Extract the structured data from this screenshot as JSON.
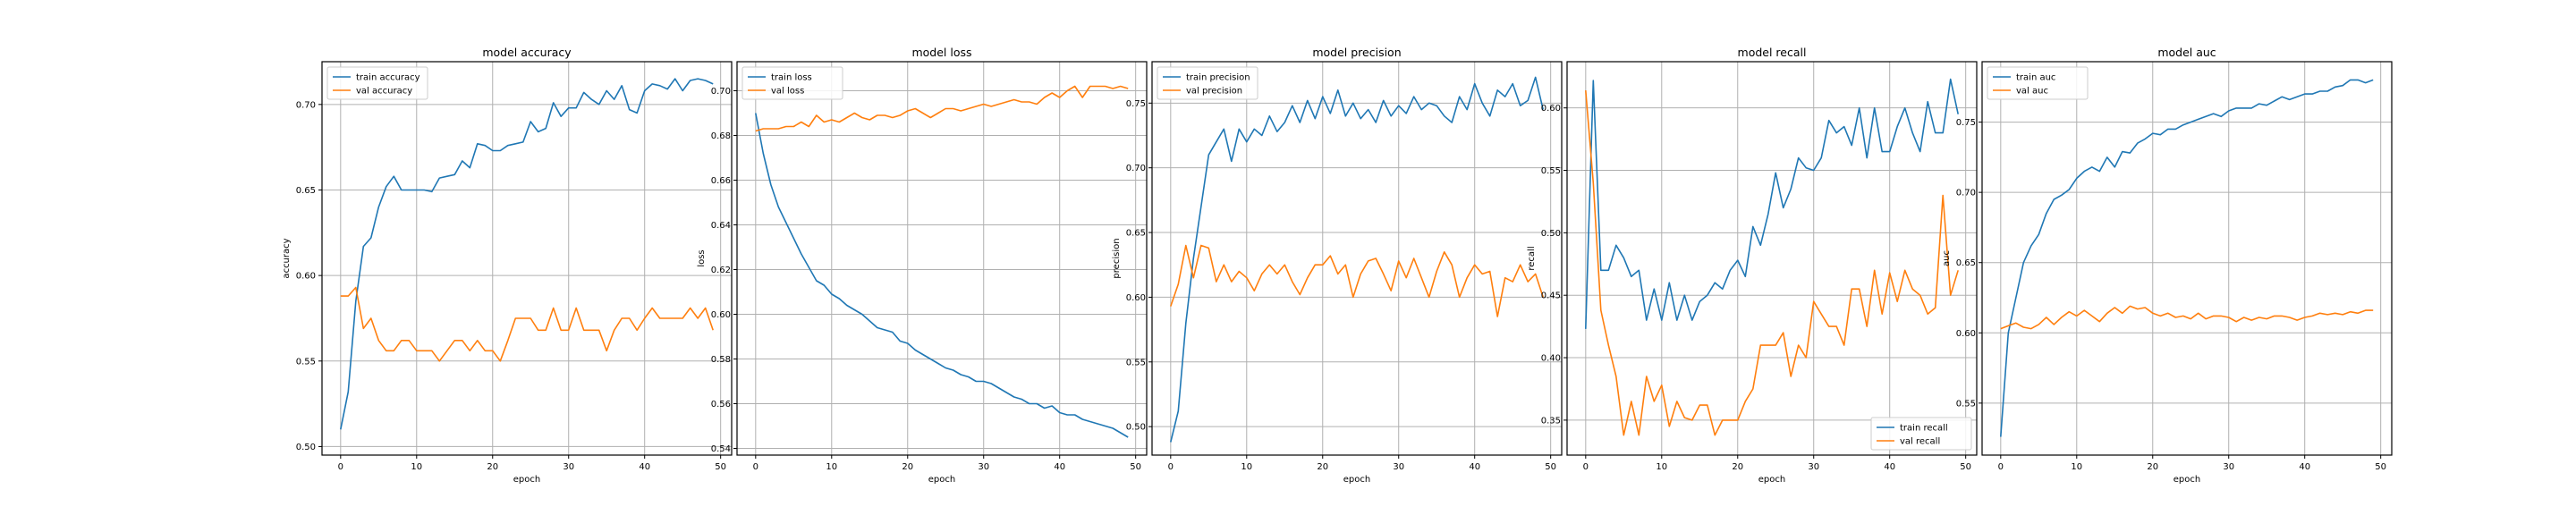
{
  "chart_data": [
    {
      "type": "line",
      "title": "model accuracy",
      "xlabel": "epoch",
      "ylabel": "accuracy",
      "xlim": [
        -2.45,
        51.45
      ],
      "ylim": [
        0.495,
        0.725
      ],
      "xticks": [
        0,
        10,
        20,
        30,
        40,
        50
      ],
      "yticks": [
        0.5,
        0.55,
        0.6,
        0.65,
        0.7
      ],
      "ytick_labels": [
        "0.50",
        "0.55",
        "0.60",
        "0.65",
        "0.70"
      ],
      "grid": true,
      "legend": "upper left",
      "x": [
        0,
        1,
        2,
        3,
        4,
        5,
        6,
        7,
        8,
        9,
        10,
        11,
        12,
        13,
        14,
        15,
        16,
        17,
        18,
        19,
        20,
        21,
        22,
        23,
        24,
        25,
        26,
        27,
        28,
        29,
        30,
        31,
        32,
        33,
        34,
        35,
        36,
        37,
        38,
        39,
        40,
        41,
        42,
        43,
        44,
        45,
        46,
        47,
        48,
        49
      ],
      "series": [
        {
          "name": "train accuracy",
          "color": "#1f77b4",
          "values": [
            0.51,
            0.532,
            0.585,
            0.617,
            0.622,
            0.64,
            0.652,
            0.658,
            0.65,
            0.65,
            0.65,
            0.65,
            0.649,
            0.657,
            0.658,
            0.659,
            0.667,
            0.663,
            0.677,
            0.676,
            0.673,
            0.673,
            0.676,
            0.677,
            0.678,
            0.69,
            0.684,
            0.686,
            0.701,
            0.693,
            0.698,
            0.698,
            0.707,
            0.703,
            0.7,
            0.708,
            0.703,
            0.711,
            0.697,
            0.695,
            0.708,
            0.712,
            0.711,
            0.709,
            0.715,
            0.708,
            0.714,
            0.715,
            0.714,
            0.712
          ]
        },
        {
          "name": "val accuracy",
          "color": "#ff7f0e",
          "values": [
            0.588,
            0.588,
            0.593,
            0.569,
            0.575,
            0.562,
            0.556,
            0.556,
            0.562,
            0.562,
            0.556,
            0.556,
            0.556,
            0.55,
            0.556,
            0.562,
            0.562,
            0.556,
            0.562,
            0.556,
            0.556,
            0.55,
            0.562,
            0.575,
            0.575,
            0.575,
            0.568,
            0.568,
            0.581,
            0.568,
            0.568,
            0.581,
            0.568,
            0.568,
            0.568,
            0.556,
            0.568,
            0.575,
            0.575,
            0.568,
            0.575,
            0.581,
            0.575,
            0.575,
            0.575,
            0.575,
            0.581,
            0.575,
            0.581,
            0.568
          ]
        }
      ]
    },
    {
      "type": "line",
      "title": "model loss",
      "xlabel": "epoch",
      "ylabel": "loss",
      "xlim": [
        -2.45,
        51.45
      ],
      "ylim": [
        0.537,
        0.713
      ],
      "xticks": [
        0,
        10,
        20,
        30,
        40,
        50
      ],
      "yticks": [
        0.54,
        0.56,
        0.58,
        0.6,
        0.62,
        0.64,
        0.66,
        0.68,
        0.7
      ],
      "ytick_labels": [
        "0.54",
        "0.56",
        "0.58",
        "0.60",
        "0.62",
        "0.64",
        "0.66",
        "0.68",
        "0.70"
      ],
      "grid": true,
      "legend": "upper left",
      "x": [
        0,
        1,
        2,
        3,
        4,
        5,
        6,
        7,
        8,
        9,
        10,
        11,
        12,
        13,
        14,
        15,
        16,
        17,
        18,
        19,
        20,
        21,
        22,
        23,
        24,
        25,
        26,
        27,
        28,
        29,
        30,
        31,
        32,
        33,
        34,
        35,
        36,
        37,
        38,
        39,
        40,
        41,
        42,
        43,
        44,
        45,
        46,
        47,
        48,
        49
      ],
      "series": [
        {
          "name": "train loss",
          "color": "#1f77b4",
          "values": [
            0.69,
            0.672,
            0.658,
            0.648,
            0.641,
            0.634,
            0.627,
            0.621,
            0.615,
            0.613,
            0.609,
            0.607,
            0.604,
            0.602,
            0.6,
            0.597,
            0.594,
            0.593,
            0.592,
            0.588,
            0.587,
            0.584,
            0.582,
            0.58,
            0.578,
            0.576,
            0.575,
            0.573,
            0.572,
            0.57,
            0.57,
            0.569,
            0.567,
            0.565,
            0.563,
            0.562,
            0.56,
            0.56,
            0.558,
            0.559,
            0.556,
            0.555,
            0.555,
            0.553,
            0.552,
            0.551,
            0.55,
            0.549,
            0.547,
            0.545
          ]
        },
        {
          "name": "val loss",
          "color": "#ff7f0e",
          "values": [
            0.682,
            0.683,
            0.683,
            0.683,
            0.684,
            0.684,
            0.686,
            0.684,
            0.689,
            0.686,
            0.687,
            0.686,
            0.688,
            0.69,
            0.688,
            0.687,
            0.689,
            0.689,
            0.688,
            0.689,
            0.691,
            0.692,
            0.69,
            0.688,
            0.69,
            0.692,
            0.692,
            0.691,
            0.692,
            0.693,
            0.694,
            0.693,
            0.694,
            0.695,
            0.696,
            0.695,
            0.695,
            0.694,
            0.697,
            0.699,
            0.697,
            0.7,
            0.702,
            0.697,
            0.702,
            0.702,
            0.702,
            0.701,
            0.702,
            0.701
          ]
        }
      ]
    },
    {
      "type": "line",
      "title": "model precision",
      "xlabel": "epoch",
      "ylabel": "precision",
      "xlim": [
        -2.45,
        51.45
      ],
      "ylim": [
        0.478,
        0.782
      ],
      "xticks": [
        0,
        10,
        20,
        30,
        40,
        50
      ],
      "yticks": [
        0.5,
        0.55,
        0.6,
        0.65,
        0.7,
        0.75
      ],
      "ytick_labels": [
        "0.50",
        "0.55",
        "0.60",
        "0.65",
        "0.70",
        "0.75"
      ],
      "grid": true,
      "legend": "upper left",
      "x": [
        0,
        1,
        2,
        3,
        4,
        5,
        6,
        7,
        8,
        9,
        10,
        11,
        12,
        13,
        14,
        15,
        16,
        17,
        18,
        19,
        20,
        21,
        22,
        23,
        24,
        25,
        26,
        27,
        28,
        29,
        30,
        31,
        32,
        33,
        34,
        35,
        36,
        37,
        38,
        39,
        40,
        41,
        42,
        43,
        44,
        45,
        46,
        47,
        48,
        49
      ],
      "series": [
        {
          "name": "train precision",
          "color": "#1f77b4",
          "values": [
            0.488,
            0.512,
            0.58,
            0.63,
            0.67,
            0.71,
            0.72,
            0.73,
            0.705,
            0.73,
            0.72,
            0.73,
            0.725,
            0.74,
            0.728,
            0.735,
            0.748,
            0.735,
            0.752,
            0.738,
            0.755,
            0.742,
            0.76,
            0.74,
            0.75,
            0.738,
            0.745,
            0.735,
            0.752,
            0.74,
            0.748,
            0.742,
            0.755,
            0.745,
            0.75,
            0.748,
            0.74,
            0.735,
            0.755,
            0.745,
            0.765,
            0.75,
            0.74,
            0.76,
            0.755,
            0.765,
            0.748,
            0.752,
            0.77,
            0.745
          ]
        },
        {
          "name": "val precision",
          "color": "#ff7f0e",
          "values": [
            0.593,
            0.61,
            0.64,
            0.615,
            0.64,
            0.638,
            0.612,
            0.625,
            0.612,
            0.62,
            0.615,
            0.605,
            0.618,
            0.625,
            0.618,
            0.625,
            0.612,
            0.602,
            0.615,
            0.625,
            0.625,
            0.632,
            0.618,
            0.625,
            0.6,
            0.618,
            0.628,
            0.63,
            0.618,
            0.605,
            0.628,
            0.615,
            0.63,
            0.615,
            0.6,
            0.62,
            0.635,
            0.625,
            0.6,
            0.615,
            0.625,
            0.618,
            0.62,
            0.585,
            0.615,
            0.612,
            0.625,
            0.612,
            0.618,
            0.6
          ]
        }
      ]
    },
    {
      "type": "line",
      "title": "model recall",
      "xlabel": "epoch",
      "ylabel": "recall",
      "xlim": [
        -2.45,
        51.45
      ],
      "ylim": [
        0.322,
        0.637
      ],
      "xticks": [
        0,
        10,
        20,
        30,
        40,
        50
      ],
      "yticks": [
        0.35,
        0.4,
        0.45,
        0.5,
        0.55,
        0.6
      ],
      "ytick_labels": [
        "0.35",
        "0.40",
        "0.45",
        "0.50",
        "0.55",
        "0.60"
      ],
      "grid": true,
      "legend": "lower right",
      "x": [
        0,
        1,
        2,
        3,
        4,
        5,
        6,
        7,
        8,
        9,
        10,
        11,
        12,
        13,
        14,
        15,
        16,
        17,
        18,
        19,
        20,
        21,
        22,
        23,
        24,
        25,
        26,
        27,
        28,
        29,
        30,
        31,
        32,
        33,
        34,
        35,
        36,
        37,
        38,
        39,
        40,
        41,
        42,
        43,
        44,
        45,
        46,
        47,
        48,
        49
      ],
      "series": [
        {
          "name": "train recall",
          "color": "#1f77b4",
          "values": [
            0.423,
            0.622,
            0.47,
            0.47,
            0.49,
            0.48,
            0.465,
            0.47,
            0.43,
            0.455,
            0.43,
            0.46,
            0.43,
            0.45,
            0.43,
            0.445,
            0.45,
            0.46,
            0.455,
            0.47,
            0.478,
            0.465,
            0.505,
            0.49,
            0.515,
            0.548,
            0.52,
            0.535,
            0.56,
            0.552,
            0.55,
            0.56,
            0.59,
            0.58,
            0.585,
            0.57,
            0.6,
            0.56,
            0.6,
            0.565,
            0.565,
            0.585,
            0.6,
            0.58,
            0.565,
            0.605,
            0.58,
            0.58,
            0.623,
            0.595
          ]
        },
        {
          "name": "val recall",
          "color": "#ff7f0e",
          "values": [
            0.614,
            0.54,
            0.438,
            0.41,
            0.385,
            0.338,
            0.365,
            0.338,
            0.385,
            0.365,
            0.378,
            0.345,
            0.365,
            0.352,
            0.35,
            0.362,
            0.362,
            0.338,
            0.35,
            0.35,
            0.35,
            0.365,
            0.375,
            0.41,
            0.41,
            0.41,
            0.42,
            0.385,
            0.41,
            0.4,
            0.445,
            0.435,
            0.425,
            0.425,
            0.41,
            0.455,
            0.455,
            0.425,
            0.47,
            0.435,
            0.468,
            0.445,
            0.47,
            0.455,
            0.45,
            0.435,
            0.44,
            0.53,
            0.45,
            0.47
          ]
        }
      ]
    },
    {
      "type": "line",
      "title": "model auc",
      "xlabel": "epoch",
      "ylabel": "auc",
      "xlim": [
        -2.45,
        51.45
      ],
      "ylim": [
        0.513,
        0.793
      ],
      "xticks": [
        0,
        10,
        20,
        30,
        40,
        50
      ],
      "yticks": [
        0.55,
        0.6,
        0.65,
        0.7,
        0.75
      ],
      "ytick_labels": [
        "0.55",
        "0.60",
        "0.65",
        "0.70",
        "0.75"
      ],
      "grid": true,
      "legend": "upper left",
      "x": [
        0,
        1,
        2,
        3,
        4,
        5,
        6,
        7,
        8,
        9,
        10,
        11,
        12,
        13,
        14,
        15,
        16,
        17,
        18,
        19,
        20,
        21,
        22,
        23,
        24,
        25,
        26,
        27,
        28,
        29,
        30,
        31,
        32,
        33,
        34,
        35,
        36,
        37,
        38,
        39,
        40,
        41,
        42,
        43,
        44,
        45,
        46,
        47,
        48,
        49
      ],
      "series": [
        {
          "name": "train auc",
          "color": "#1f77b4",
          "values": [
            0.526,
            0.6,
            0.625,
            0.65,
            0.662,
            0.67,
            0.685,
            0.695,
            0.698,
            0.702,
            0.71,
            0.715,
            0.718,
            0.715,
            0.725,
            0.718,
            0.729,
            0.728,
            0.735,
            0.738,
            0.742,
            0.741,
            0.745,
            0.745,
            0.748,
            0.75,
            0.752,
            0.754,
            0.756,
            0.754,
            0.758,
            0.76,
            0.76,
            0.76,
            0.763,
            0.762,
            0.765,
            0.768,
            0.766,
            0.768,
            0.77,
            0.77,
            0.772,
            0.772,
            0.775,
            0.776,
            0.78,
            0.78,
            0.778,
            0.78
          ]
        },
        {
          "name": "val auc",
          "color": "#ff7f0e",
          "values": [
            0.603,
            0.605,
            0.607,
            0.604,
            0.603,
            0.606,
            0.611,
            0.606,
            0.611,
            0.615,
            0.612,
            0.616,
            0.612,
            0.608,
            0.614,
            0.618,
            0.614,
            0.619,
            0.617,
            0.618,
            0.614,
            0.612,
            0.614,
            0.611,
            0.612,
            0.61,
            0.614,
            0.61,
            0.612,
            0.612,
            0.611,
            0.608,
            0.611,
            0.609,
            0.611,
            0.61,
            0.612,
            0.612,
            0.611,
            0.609,
            0.611,
            0.612,
            0.614,
            0.613,
            0.614,
            0.613,
            0.615,
            0.614,
            0.616,
            0.616
          ]
        }
      ]
    }
  ]
}
